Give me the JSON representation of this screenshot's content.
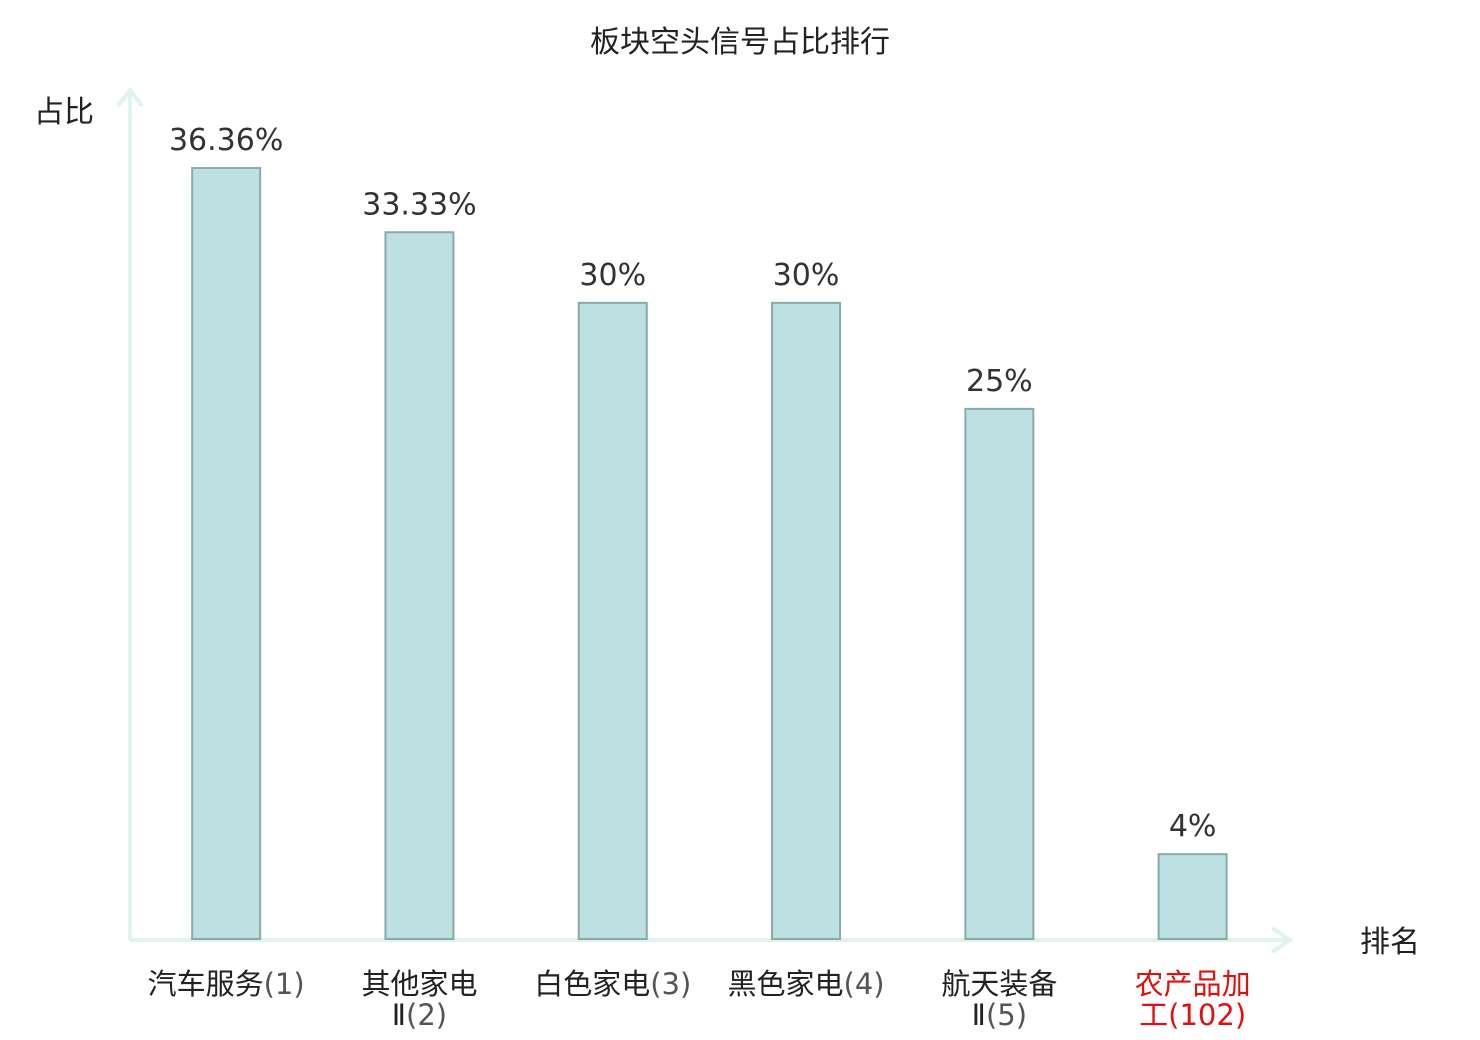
{
  "chart_data": {
    "type": "bar",
    "title": "板块空头信号占比排行",
    "ylabel": "占比",
    "xlabel": "排名",
    "ylim": [
      0,
      40
    ],
    "grid": false,
    "legend": "none",
    "categories": [
      {
        "name_lines": [
          "汽车服务"
        ],
        "rank": "(1)",
        "highlight": false
      },
      {
        "name_lines": [
          "其他家电",
          "Ⅱ"
        ],
        "rank": "(2)",
        "highlight": false
      },
      {
        "name_lines": [
          "白色家电"
        ],
        "rank": "(3)",
        "highlight": false
      },
      {
        "name_lines": [
          "黑色家电"
        ],
        "rank": "(4)",
        "highlight": false
      },
      {
        "name_lines": [
          "航天装备",
          "Ⅱ"
        ],
        "rank": "(5)",
        "highlight": false
      },
      {
        "name_lines": [
          "农产品加",
          "工"
        ],
        "rank": "(102)",
        "highlight": true
      }
    ],
    "values": [
      36.36,
      33.33,
      30,
      30,
      25,
      4
    ],
    "value_labels": [
      "36.36%",
      "33.33%",
      "30%",
      "30%",
      "25%",
      "4%"
    ],
    "colors": {
      "bar_fill": "#bde0e3",
      "bar_stroke": "#8aa9aa",
      "axis": "#dff3f0",
      "text": "#222222",
      "rank_text": "#555555",
      "highlight": "#e01010"
    }
  }
}
